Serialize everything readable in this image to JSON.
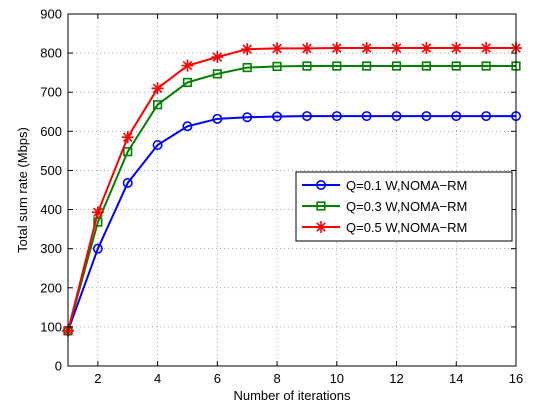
{
  "chart_data": {
    "type": "line",
    "title": "",
    "xlabel": "Number of iterations",
    "ylabel": "Total sum rate (Mbps)",
    "xlim": [
      1,
      16
    ],
    "ylim": [
      0,
      900
    ],
    "xticks": [
      2,
      4,
      6,
      8,
      10,
      12,
      14,
      16
    ],
    "yticks": [
      0,
      100,
      200,
      300,
      400,
      500,
      600,
      700,
      800,
      900
    ],
    "grid": true,
    "legend_position": "center-right",
    "x": [
      1,
      2,
      3,
      4,
      5,
      6,
      7,
      8,
      9,
      10,
      11,
      12,
      13,
      14,
      15,
      16
    ],
    "series": [
      {
        "name": "Q=0.1 W,NOMA−RM",
        "color": "#0000ff",
        "marker": "circle",
        "values": [
          90,
          300,
          468,
          565,
          613,
          632,
          636,
          638,
          639,
          639,
          639,
          639,
          639,
          639,
          639,
          639
        ]
      },
      {
        "name": "Q=0.3 W,NOMA−RM",
        "color": "#008000",
        "marker": "square",
        "values": [
          90,
          368,
          548,
          668,
          725,
          747,
          763,
          766,
          767,
          767,
          767,
          767,
          767,
          767,
          767,
          767
        ]
      },
      {
        "name": "Q=0.5 W,NOMA−RM",
        "color": "#ff0000",
        "marker": "star",
        "values": [
          90,
          393,
          585,
          710,
          768,
          790,
          810,
          812,
          812,
          813,
          813,
          813,
          813,
          813,
          813,
          813
        ]
      }
    ]
  }
}
